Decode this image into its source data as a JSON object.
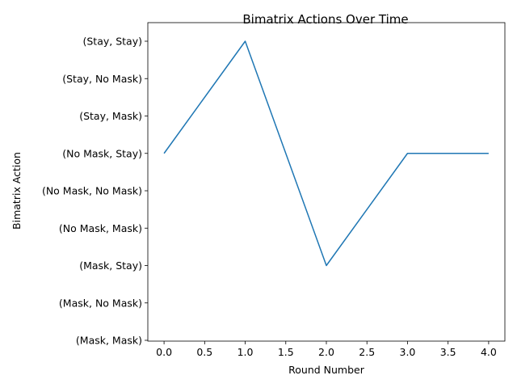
{
  "chart_data": {
    "type": "line",
    "title": "Bimatrix Actions Over Time",
    "xlabel": "Round Number",
    "ylabel": "Bimatrix Action",
    "x": [
      0,
      1,
      2,
      3,
      4
    ],
    "xlim": [
      -0.2,
      4.2
    ],
    "xticks": [
      0.0,
      0.5,
      1.0,
      1.5,
      2.0,
      2.5,
      3.0,
      3.5,
      4.0
    ],
    "xtick_labels": [
      "0.0",
      "0.5",
      "1.0",
      "1.5",
      "2.0",
      "2.5",
      "3.0",
      "3.5",
      "4.0"
    ],
    "y_categories": [
      "(Mask, Mask)",
      "(Mask, No Mask)",
      "(Mask, Stay)",
      "(No Mask, Mask)",
      "(No Mask, No Mask)",
      "(No Mask, Stay)",
      "(Stay, Mask)",
      "(Stay, No Mask)",
      "(Stay, Stay)"
    ],
    "series": [
      {
        "values": [
          "(No Mask, Stay)",
          "(Stay, Stay)",
          "(Mask, Stay)",
          "(No Mask, Stay)",
          "(No Mask, Stay)"
        ],
        "color": "#1f77b4"
      }
    ],
    "grid": false,
    "legend": "none"
  }
}
